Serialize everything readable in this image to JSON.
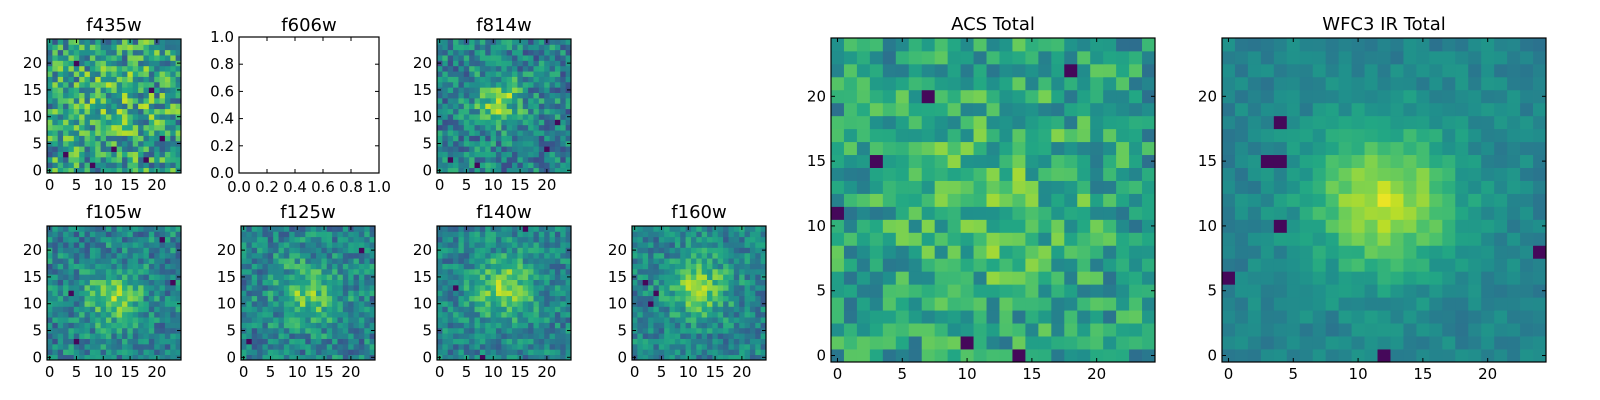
{
  "chart_data": {
    "type": "heatmap",
    "colormap": "viridis",
    "panels": [
      {
        "id": "f435w",
        "title": "f435w",
        "kind": "image",
        "n": 25,
        "xticks": [
          "0",
          "5",
          "10",
          "15",
          "20"
        ],
        "yticks": [
          "0",
          "5",
          "10",
          "15",
          "20"
        ],
        "blob": {
          "cx": 12,
          "cy": 12,
          "sigma": 6,
          "amp": 0.1
        },
        "noise": 0.6,
        "base": 0.55,
        "dark_pixels": [
          [
            3,
            3
          ],
          [
            8,
            1
          ],
          [
            18,
            2
          ],
          [
            21,
            6
          ],
          [
            5,
            20
          ],
          [
            12,
            4
          ],
          [
            19,
            15
          ]
        ]
      },
      {
        "id": "f606w",
        "title": "f606w",
        "kind": "empty",
        "xlim": [
          0,
          1
        ],
        "ylim": [
          0,
          1
        ],
        "xticks": [
          "0.0",
          "0.2",
          "0.4",
          "0.6",
          "0.8",
          "1.0"
        ],
        "yticks": [
          "0.0",
          "0.2",
          "0.4",
          "0.6",
          "0.8",
          "1.0"
        ]
      },
      {
        "id": "f814w",
        "title": "f814w",
        "kind": "image",
        "n": 25,
        "xticks": [
          "0",
          "5",
          "10",
          "15",
          "20"
        ],
        "yticks": [
          "0",
          "5",
          "10",
          "15",
          "20"
        ],
        "blob": {
          "cx": 11,
          "cy": 13,
          "sigma": 3,
          "amp": 0.35
        },
        "noise": 0.45,
        "base": 0.45,
        "dark_pixels": [
          [
            2,
            2
          ],
          [
            7,
            1
          ],
          [
            20,
            4
          ],
          [
            22,
            9
          ]
        ]
      },
      {
        "id": "f105w",
        "title": "f105w",
        "kind": "image",
        "n": 25,
        "xticks": [
          "0",
          "5",
          "10",
          "15",
          "20"
        ],
        "yticks": [
          "0",
          "5",
          "10",
          "15",
          "20"
        ],
        "blob": {
          "cx": 12,
          "cy": 11,
          "sigma": 4,
          "amp": 0.3
        },
        "noise": 0.4,
        "base": 0.45,
        "dark_pixels": [
          [
            4,
            12
          ],
          [
            5,
            3
          ],
          [
            21,
            22
          ],
          [
            23,
            14
          ]
        ]
      },
      {
        "id": "f125w",
        "title": "f125w",
        "kind": "image",
        "n": 25,
        "xticks": [
          "0",
          "5",
          "10",
          "15",
          "20"
        ],
        "yticks": [
          "0",
          "5",
          "10",
          "15",
          "20"
        ],
        "blob": {
          "cx": 12,
          "cy": 12,
          "sigma": 4,
          "amp": 0.3
        },
        "noise": 0.4,
        "base": 0.45,
        "dark_pixels": [
          [
            1,
            3
          ],
          [
            22,
            20
          ]
        ]
      },
      {
        "id": "f140w",
        "title": "f140w",
        "kind": "image",
        "n": 25,
        "xticks": [
          "0",
          "5",
          "10",
          "15",
          "20"
        ],
        "yticks": [
          "0",
          "5",
          "10",
          "15",
          "20"
        ],
        "blob": {
          "cx": 12,
          "cy": 13,
          "sigma": 4,
          "amp": 0.35
        },
        "noise": 0.35,
        "base": 0.45,
        "dark_pixels": [
          [
            8,
            0
          ],
          [
            16,
            24
          ],
          [
            3,
            13
          ]
        ]
      },
      {
        "id": "f160w",
        "title": "f160w",
        "kind": "image",
        "n": 25,
        "xticks": [
          "0",
          "5",
          "10",
          "15",
          "20"
        ],
        "yticks": [
          "0",
          "5",
          "10",
          "15",
          "20"
        ],
        "blob": {
          "cx": 12,
          "cy": 13,
          "sigma": 4,
          "amp": 0.35
        },
        "noise": 0.35,
        "base": 0.45,
        "dark_pixels": [
          [
            2,
            14
          ],
          [
            3,
            10
          ],
          [
            4,
            12
          ]
        ]
      },
      {
        "id": "acs_total",
        "title": "ACS Total",
        "kind": "image",
        "n": 25,
        "xticks": [
          "0",
          "5",
          "10",
          "15",
          "20"
        ],
        "yticks": [
          "0",
          "5",
          "10",
          "15",
          "20"
        ],
        "blob": {
          "cx": 12,
          "cy": 12,
          "sigma": 6,
          "amp": 0.15
        },
        "noise": 0.4,
        "base": 0.55,
        "dark_pixels": [
          [
            7,
            20
          ],
          [
            3,
            15
          ],
          [
            0,
            11
          ],
          [
            18,
            22
          ],
          [
            10,
            1
          ],
          [
            14,
            0
          ]
        ]
      },
      {
        "id": "wfc3ir_total",
        "title": "WFC3 IR Total",
        "kind": "image",
        "n": 25,
        "xticks": [
          "0",
          "5",
          "10",
          "15",
          "20"
        ],
        "yticks": [
          "0",
          "5",
          "10",
          "15",
          "20"
        ],
        "blob": {
          "cx": 12,
          "cy": 12,
          "sigma": 4,
          "amp": 0.45
        },
        "noise": 0.15,
        "base": 0.45,
        "dark_pixels": [
          [
            4,
            10
          ],
          [
            3,
            15
          ],
          [
            4,
            15
          ],
          [
            24,
            8
          ],
          [
            0,
            6
          ],
          [
            12,
            0
          ],
          [
            4,
            18
          ]
        ]
      }
    ]
  }
}
